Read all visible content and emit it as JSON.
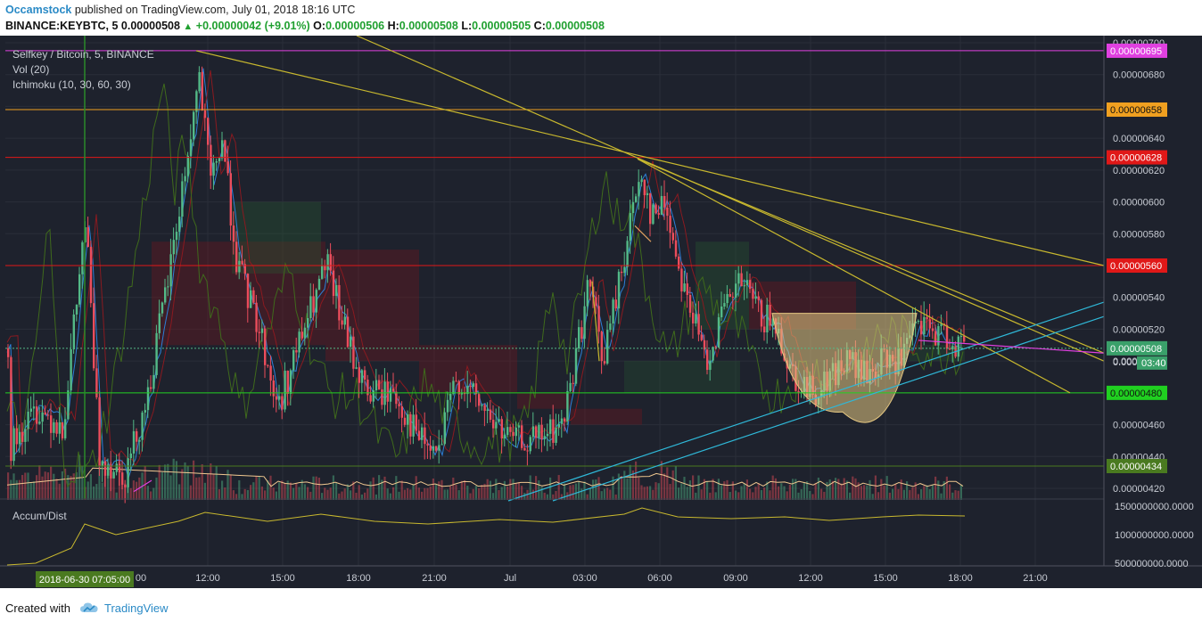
{
  "header": {
    "author": "Occamstock",
    "published_text": "published on TradingView.com, July 01, 2018 18:16 UTC",
    "symbol": "BINANCE:KEYBTC, 5",
    "last_price": "0.00000508",
    "change": "+0.00000042 (+9.01%)",
    "o_label": "O:",
    "o_value": "0.00000506",
    "h_label": "H:",
    "h_value": "0.00000508",
    "l_label": "L:",
    "l_value": "0.00000505",
    "c_label": "C:",
    "c_value": "0.00000508"
  },
  "legend": {
    "title": "Selfkey / Bitcoin, 5, BINANCE",
    "vol": "Vol (20)",
    "ichimoku": "Ichimoku (10, 30, 60, 30)",
    "accum": "Accum/Dist"
  },
  "footer": {
    "created_with": "Created with",
    "brand": "TradingView"
  },
  "colors": {
    "background": "#1e222d",
    "grid": "#2a2e39",
    "up_candle": "#53b987",
    "down_candle": "#eb4d5c",
    "trendline": "#c8b82e",
    "cyan": "#2fb8d8",
    "magenta": "#e040e0",
    "orange": "#f0a020",
    "red": "#e01818",
    "green": "#20d020",
    "darkgreen": "#4a7a20"
  },
  "price_axis": {
    "ticks": [
      "0.00000700",
      "0.00000680",
      "0.00000660",
      "0.00000640",
      "0.00000620",
      "0.00000600",
      "0.00000580",
      "0.00000560",
      "0.00000540",
      "0.00000520",
      "0.00000500",
      "0.00000480",
      "0.00000460",
      "0.00000440",
      "0.00000420"
    ],
    "ylim": [
      4.1e-06,
      7e-06
    ]
  },
  "time_axis": {
    "ticks": [
      "12:00",
      "15:00",
      "18:00",
      "21:00",
      "Jul",
      "03:00",
      "06:00",
      "09:00",
      "12:00",
      "15:00",
      "18:00",
      "21:00"
    ],
    "cursor_label": "2018-06-30 07:05:00",
    "partial_label": "00"
  },
  "levels": [
    {
      "label": "0.00000695",
      "value": 6.95e-06,
      "color": "#e040e0"
    },
    {
      "label": "0.00000658",
      "value": 6.58e-06,
      "color": "#f0a020"
    },
    {
      "label": "0.00000628",
      "value": 6.28e-06,
      "color": "#e01818"
    },
    {
      "label": "0.00000560",
      "value": 5.6e-06,
      "color": "#e01818"
    },
    {
      "label": "0.00000480",
      "value": 4.8e-06,
      "color": "#20d020"
    },
    {
      "label": "0.00000434",
      "value": 4.34e-06,
      "color": "#4a7a20"
    }
  ],
  "current_price": {
    "label": "0.00000508",
    "value": 5.08e-06,
    "countdown": "03:40",
    "partial": "0.000"
  },
  "accum_axis": {
    "ticks": [
      "1500000000.0000",
      "1000000000.0000",
      "500000000.0000"
    ]
  }
}
